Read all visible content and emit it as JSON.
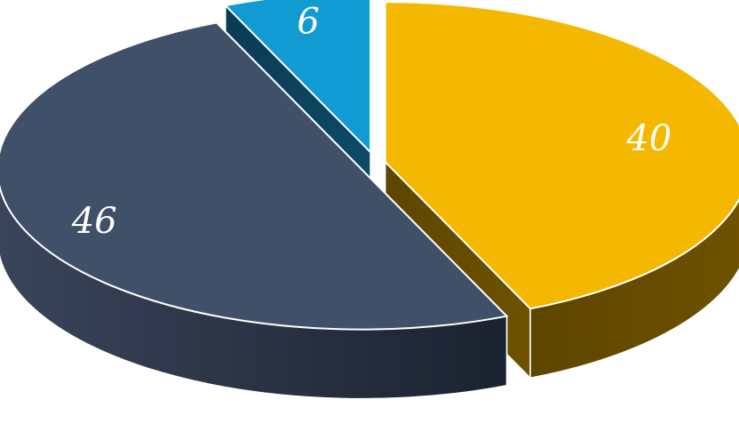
{
  "chart_data": {
    "type": "pie",
    "style": "3d-exploded",
    "slices": [
      {
        "label": "40",
        "value": 40,
        "color": "#F5B800"
      },
      {
        "label": "46",
        "value": 46,
        "color": "#415069"
      },
      {
        "label": "6",
        "value": 6,
        "color": "#119BD2"
      }
    ],
    "title": "",
    "legend": "none"
  }
}
